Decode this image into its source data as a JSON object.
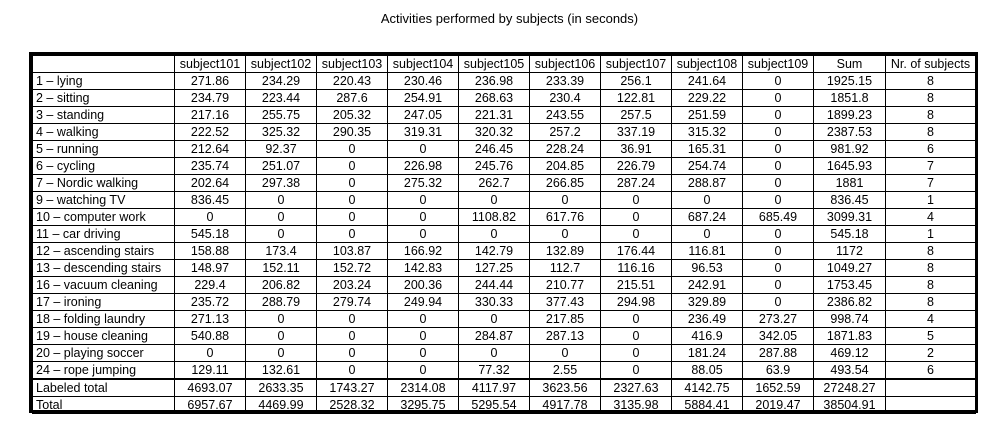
{
  "title": "Activities performed by subjects (in seconds)",
  "columns": [
    "",
    "subject101",
    "subject102",
    "subject103",
    "subject104",
    "subject105",
    "subject106",
    "subject107",
    "subject108",
    "subject109",
    "Sum",
    "Nr. of subjects"
  ],
  "rows": [
    [
      "1 – lying",
      "271.86",
      "234.29",
      "220.43",
      "230.46",
      "236.98",
      "233.39",
      "256.1",
      "241.64",
      "0",
      "1925.15",
      "8"
    ],
    [
      "2 – sitting",
      "234.79",
      "223.44",
      "287.6",
      "254.91",
      "268.63",
      "230.4",
      "122.81",
      "229.22",
      "0",
      "1851.8",
      "8"
    ],
    [
      "3 – standing",
      "217.16",
      "255.75",
      "205.32",
      "247.05",
      "221.31",
      "243.55",
      "257.5",
      "251.59",
      "0",
      "1899.23",
      "8"
    ],
    [
      "4 – walking",
      "222.52",
      "325.32",
      "290.35",
      "319.31",
      "320.32",
      "257.2",
      "337.19",
      "315.32",
      "0",
      "2387.53",
      "8"
    ],
    [
      "5 – running",
      "212.64",
      "92.37",
      "0",
      "0",
      "246.45",
      "228.24",
      "36.91",
      "165.31",
      "0",
      "981.92",
      "6"
    ],
    [
      "6 – cycling",
      "235.74",
      "251.07",
      "0",
      "226.98",
      "245.76",
      "204.85",
      "226.79",
      "254.74",
      "0",
      "1645.93",
      "7"
    ],
    [
      "7 – Nordic walking",
      "202.64",
      "297.38",
      "0",
      "275.32",
      "262.7",
      "266.85",
      "287.24",
      "288.87",
      "0",
      "1881",
      "7"
    ],
    [
      "9 – watching TV",
      "836.45",
      "0",
      "0",
      "0",
      "0",
      "0",
      "0",
      "0",
      "0",
      "836.45",
      "1"
    ],
    [
      "10 – computer work",
      "0",
      "0",
      "0",
      "0",
      "1108.82",
      "617.76",
      "0",
      "687.24",
      "685.49",
      "3099.31",
      "4"
    ],
    [
      "11 – car driving",
      "545.18",
      "0",
      "0",
      "0",
      "0",
      "0",
      "0",
      "0",
      "0",
      "545.18",
      "1"
    ],
    [
      "12 – ascending stairs",
      "158.88",
      "173.4",
      "103.87",
      "166.92",
      "142.79",
      "132.89",
      "176.44",
      "116.81",
      "0",
      "1172",
      "8"
    ],
    [
      "13 – descending stairs",
      "148.97",
      "152.11",
      "152.72",
      "142.83",
      "127.25",
      "112.7",
      "116.16",
      "96.53",
      "0",
      "1049.27",
      "8"
    ],
    [
      "16 – vacuum cleaning",
      "229.4",
      "206.82",
      "203.24",
      "200.36",
      "244.44",
      "210.77",
      "215.51",
      "242.91",
      "0",
      "1753.45",
      "8"
    ],
    [
      "17 – ironing",
      "235.72",
      "288.79",
      "279.74",
      "249.94",
      "330.33",
      "377.43",
      "294.98",
      "329.89",
      "0",
      "2386.82",
      "8"
    ],
    [
      "18 – folding laundry",
      "271.13",
      "0",
      "0",
      "0",
      "0",
      "217.85",
      "0",
      "236.49",
      "273.27",
      "998.74",
      "4"
    ],
    [
      "19 – house cleaning",
      "540.88",
      "0",
      "0",
      "0",
      "284.87",
      "287.13",
      "0",
      "416.9",
      "342.05",
      "1871.83",
      "5"
    ],
    [
      "20 – playing soccer",
      "0",
      "0",
      "0",
      "0",
      "0",
      "0",
      "0",
      "181.24",
      "287.88",
      "469.12",
      "2"
    ],
    [
      "24 – rope jumping",
      "129.11",
      "132.61",
      "0",
      "0",
      "77.32",
      "2.55",
      "0",
      "88.05",
      "63.9",
      "493.54",
      "6"
    ]
  ],
  "totals": [
    [
      "Labeled total",
      "4693.07",
      "2633.35",
      "1743.27",
      "2314.08",
      "4117.97",
      "3623.56",
      "2327.63",
      "4142.75",
      "1652.59",
      "27248.27",
      ""
    ],
    [
      "Total",
      "6957.67",
      "4469.99",
      "2528.32",
      "3295.75",
      "5295.54",
      "4917.78",
      "3135.98",
      "5884.41",
      "2019.47",
      "38504.91",
      ""
    ]
  ]
}
